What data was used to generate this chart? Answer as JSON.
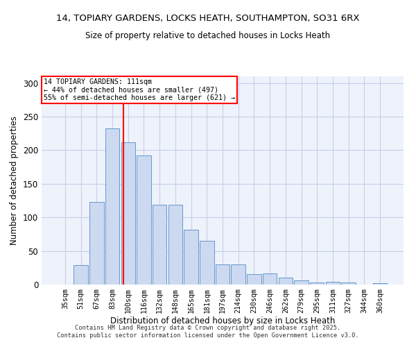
{
  "title_line1": "14, TOPIARY GARDENS, LOCKS HEATH, SOUTHAMPTON, SO31 6RX",
  "title_line2": "Size of property relative to detached houses in Locks Heath",
  "xlabel": "Distribution of detached houses by size in Locks Heath",
  "ylabel": "Number of detached properties",
  "categories": [
    "35sqm",
    "51sqm",
    "67sqm",
    "83sqm",
    "100sqm",
    "116sqm",
    "132sqm",
    "148sqm",
    "165sqm",
    "181sqm",
    "197sqm",
    "214sqm",
    "230sqm",
    "246sqm",
    "262sqm",
    "279sqm",
    "295sqm",
    "311sqm",
    "327sqm",
    "344sqm",
    "360sqm"
  ],
  "bar_values": [
    0,
    29,
    123,
    233,
    212,
    192,
    119,
    119,
    82,
    65,
    30,
    30,
    15,
    17,
    10,
    6,
    3,
    4,
    3,
    0,
    2
  ],
  "bar_color": "#ccd9f0",
  "bar_edge_color": "#6699cc",
  "vline_x": 3.72,
  "vline_color": "red",
  "annotation_title": "14 TOPIARY GARDENS: 111sqm",
  "annotation_line1": "← 44% of detached houses are smaller (497)",
  "annotation_line2": "55% of semi-detached houses are larger (621) →",
  "ylim": [
    0,
    310
  ],
  "yticks": [
    0,
    50,
    100,
    150,
    200,
    250,
    300
  ],
  "background_color": "#eef2fb",
  "grid_color": "#c8cfe8",
  "footer_line1": "Contains HM Land Registry data © Crown copyright and database right 2025.",
  "footer_line2": "Contains public sector information licensed under the Open Government Licence v3.0."
}
